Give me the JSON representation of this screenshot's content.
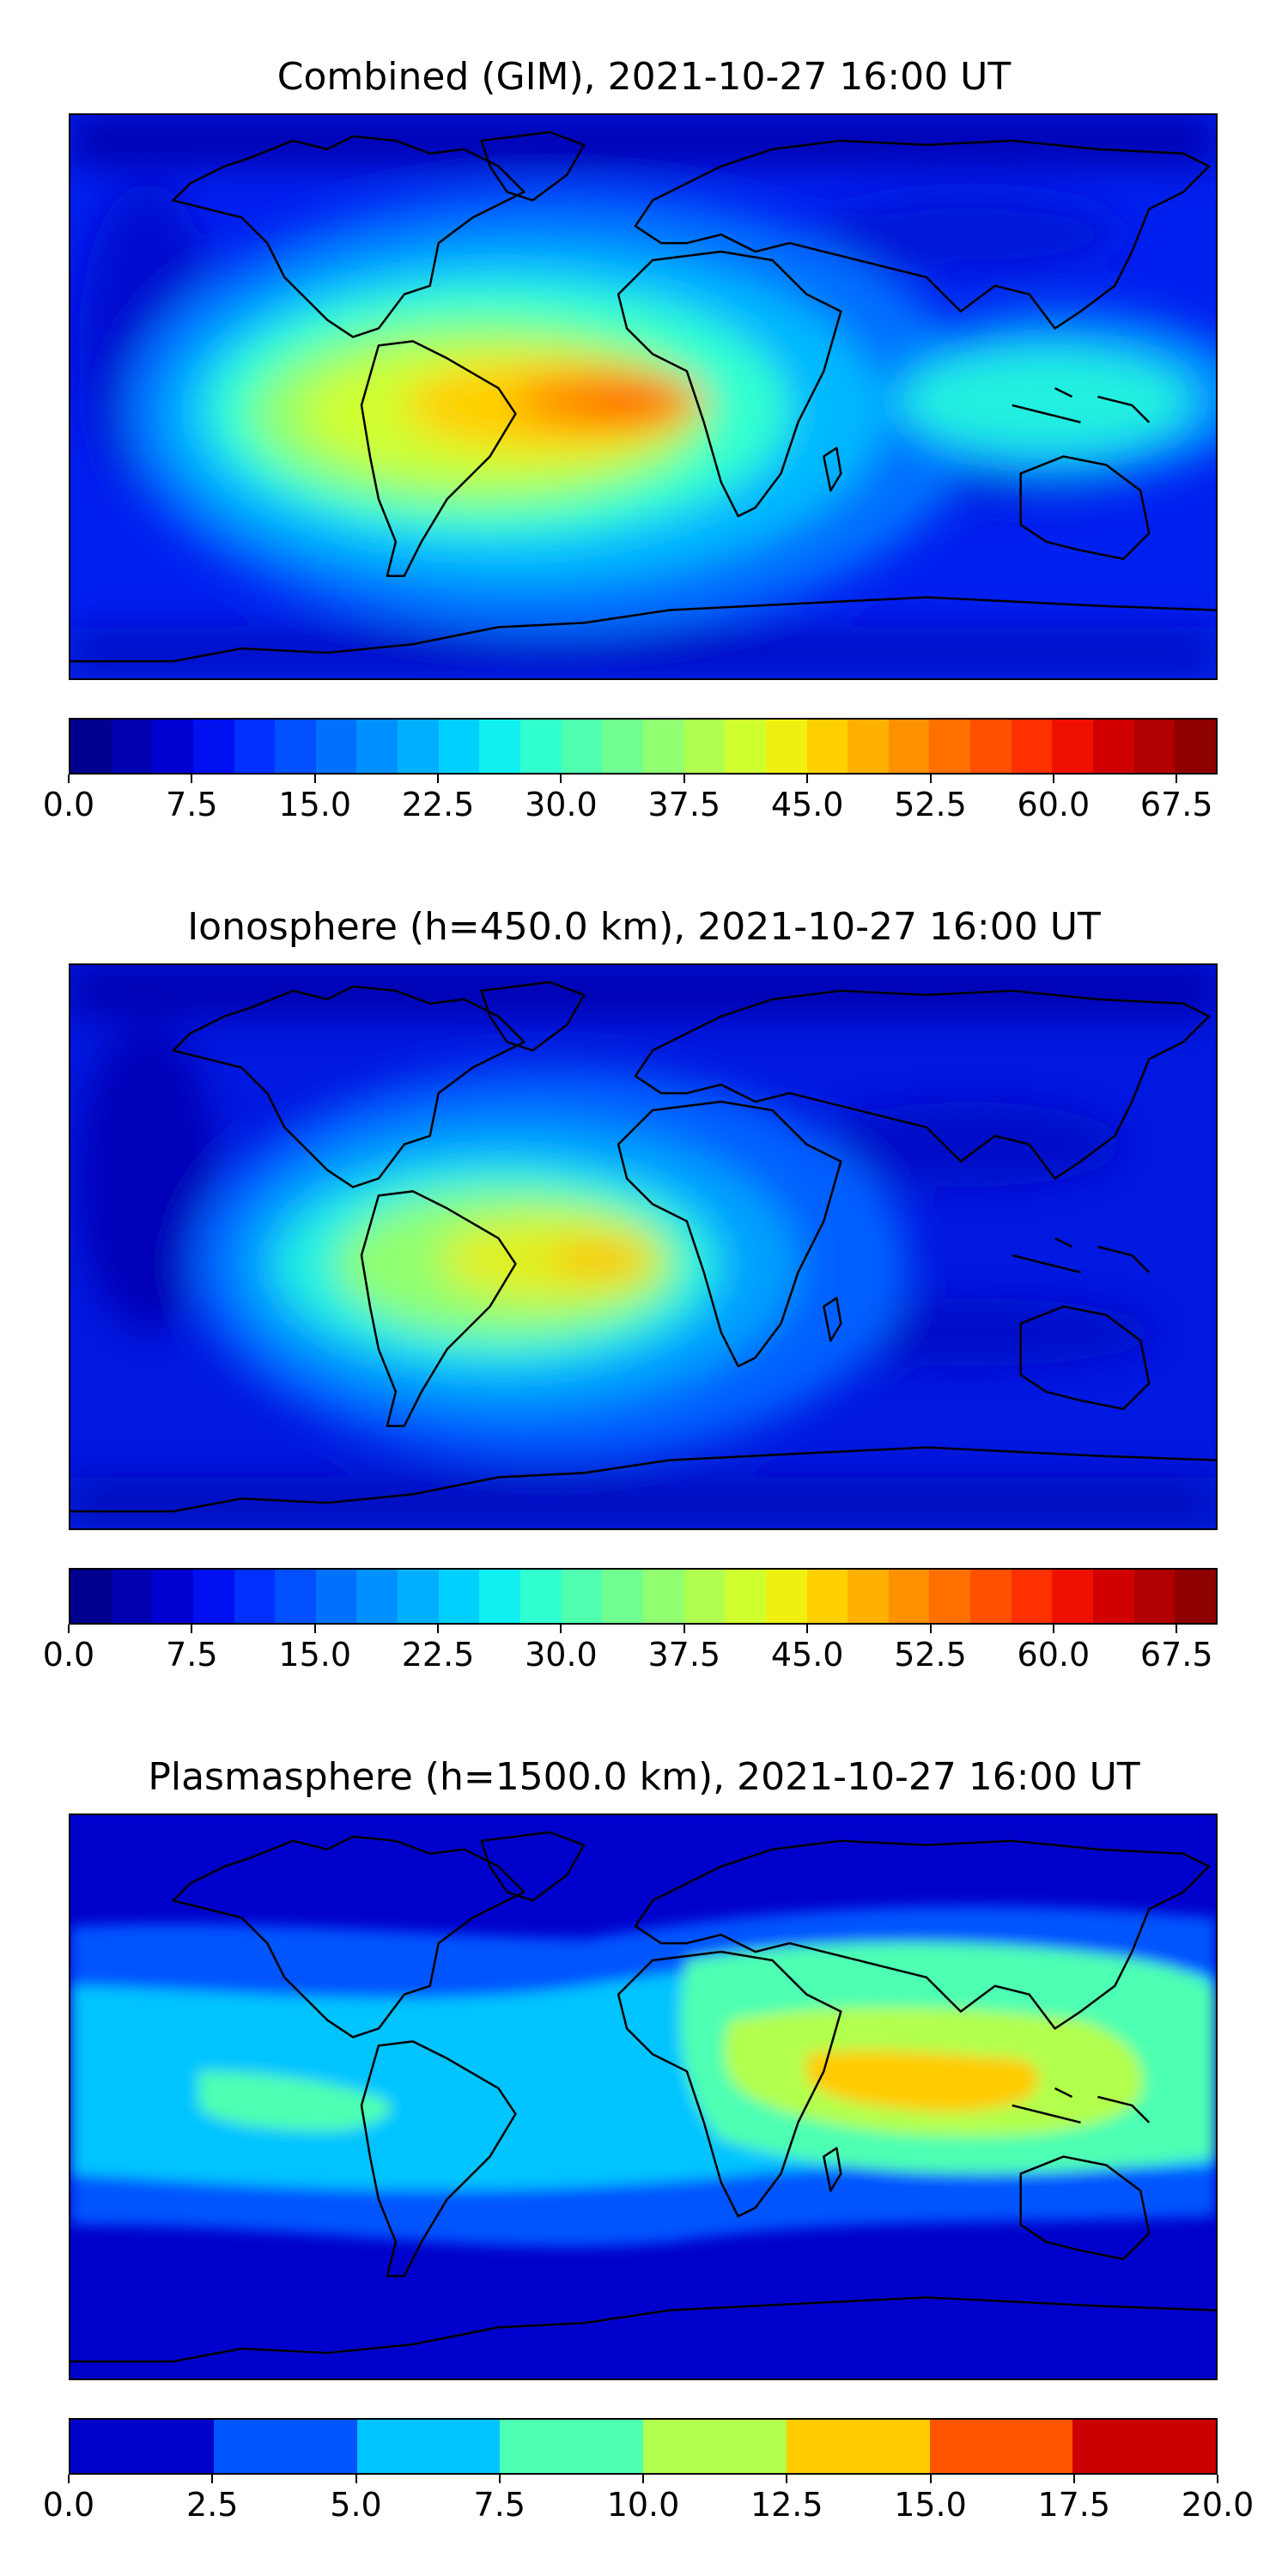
{
  "panels": [
    {
      "title": "Combined (GIM), 2021-10-27 16:00 UT",
      "colorbar": {
        "min": 0.0,
        "max": 70.0,
        "step": 2.5,
        "tick_labels": [
          "0.0",
          "7.5",
          "15.0",
          "22.5",
          "30.0",
          "37.5",
          "45.0",
          "52.5",
          "60.0",
          "67.5"
        ],
        "colors": [
          "#00008f",
          "#0000b0",
          "#0000d0",
          "#0010f0",
          "#0030ff",
          "#0050ff",
          "#0070ff",
          "#0090ff",
          "#00b0ff",
          "#00d0ff",
          "#10f0f0",
          "#30ffd0",
          "#50ffb0",
          "#70ff90",
          "#90ff70",
          "#b0ff50",
          "#d0ff30",
          "#f0f010",
          "#ffd000",
          "#ffb000",
          "#ff9000",
          "#ff7000",
          "#ff5000",
          "#ff3000",
          "#f01000",
          "#d00000",
          "#b00000",
          "#8f0000"
        ]
      }
    },
    {
      "title": "Ionosphere  (h=450.0 km), 2021-10-27 16:00 UT",
      "colorbar": {
        "min": 0.0,
        "max": 70.0,
        "step": 2.5,
        "tick_labels": [
          "0.0",
          "7.5",
          "15.0",
          "22.5",
          "30.0",
          "37.5",
          "45.0",
          "52.5",
          "60.0",
          "67.5"
        ],
        "colors": [
          "#00008f",
          "#0000b0",
          "#0000d0",
          "#0010f0",
          "#0030ff",
          "#0050ff",
          "#0070ff",
          "#0090ff",
          "#00b0ff",
          "#00d0ff",
          "#10f0f0",
          "#30ffd0",
          "#50ffb0",
          "#70ff90",
          "#90ff70",
          "#b0ff50",
          "#d0ff30",
          "#f0f010",
          "#ffd000",
          "#ffb000",
          "#ff9000",
          "#ff7000",
          "#ff5000",
          "#ff3000",
          "#f01000",
          "#d00000",
          "#b00000",
          "#8f0000"
        ]
      }
    },
    {
      "title": "Plasmasphere (h=1500.0 km), 2021-10-27 16:00 UT",
      "colorbar": {
        "min": 0.0,
        "max": 20.0,
        "step": 2.5,
        "tick_labels": [
          "0.0",
          "2.5",
          "5.0",
          "7.5",
          "10.0",
          "12.5",
          "15.0",
          "17.5",
          "20.0"
        ],
        "colors": [
          "#0000cc",
          "#0055ff",
          "#00c4ff",
          "#4dffb2",
          "#b2ff4d",
          "#ffcc00",
          "#ff5500",
          "#cc0000"
        ]
      }
    }
  ]
}
